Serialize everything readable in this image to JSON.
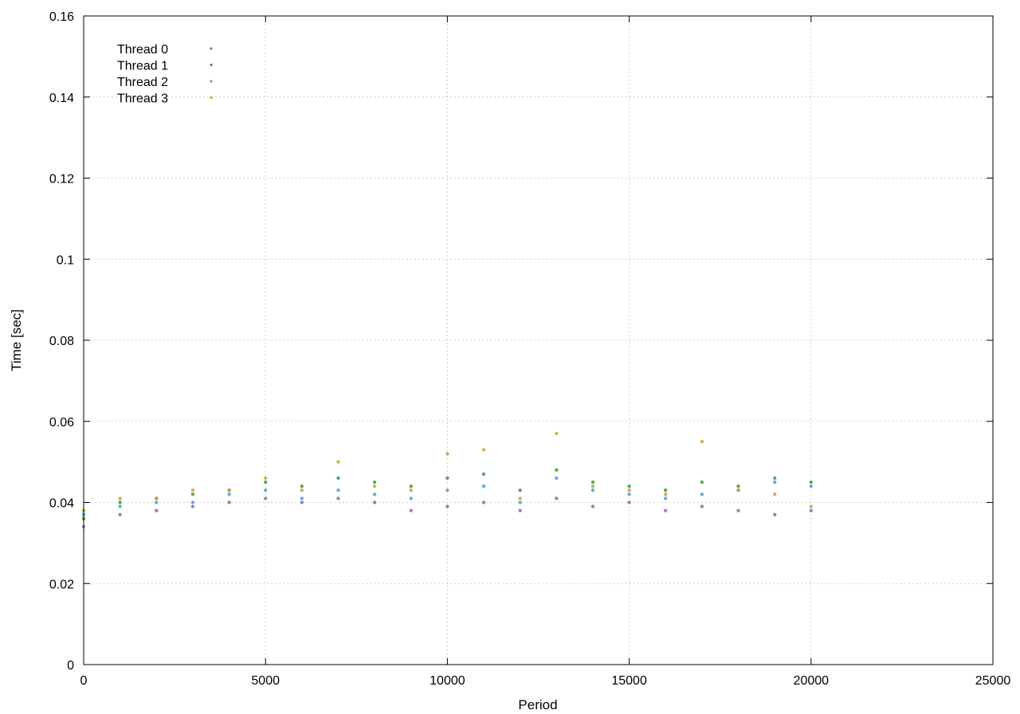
{
  "chart_data": {
    "type": "scatter",
    "title": "",
    "xlabel": "Period",
    "ylabel": "Time [sec]",
    "xlim": [
      0,
      25000
    ],
    "ylim": [
      0,
      0.16
    ],
    "xticks": [
      0,
      5000,
      10000,
      15000,
      20000,
      25000
    ],
    "yticks": [
      0,
      0.02,
      0.04,
      0.06,
      0.08,
      0.1,
      0.12,
      0.14,
      0.16
    ],
    "xtick_labels": [
      "0",
      "5000",
      "10000",
      "15000",
      "20000",
      "25000"
    ],
    "ytick_labels": [
      "0",
      "0.02",
      "0.04",
      "0.06",
      "0.08",
      "0.1",
      "0.12",
      "0.14",
      "0.16"
    ],
    "grid": true,
    "legend_position": "top-left",
    "series": [
      {
        "name": "Thread 0",
        "color": "#8a6bb0",
        "points": [
          [
            0,
            0.034
          ],
          [
            1000,
            0.037
          ],
          [
            2000,
            0.038
          ],
          [
            3000,
            0.039
          ],
          [
            4000,
            0.04
          ],
          [
            5000,
            0.041
          ],
          [
            6000,
            0.04
          ],
          [
            7000,
            0.041
          ],
          [
            8000,
            0.04
          ],
          [
            9000,
            0.038
          ],
          [
            10000,
            0.039
          ],
          [
            11000,
            0.04
          ],
          [
            12000,
            0.038
          ],
          [
            13000,
            0.041
          ],
          [
            14000,
            0.039
          ],
          [
            15000,
            0.04
          ],
          [
            16000,
            0.038
          ],
          [
            17000,
            0.039
          ],
          [
            18000,
            0.038
          ],
          [
            19000,
            0.037
          ],
          [
            20000,
            0.038
          ]
        ]
      },
      {
        "name": "Thread 1",
        "color": "#3e9a3e",
        "points": [
          [
            0,
            0.036
          ],
          [
            1000,
            0.04
          ],
          [
            2000,
            0.041
          ],
          [
            3000,
            0.042
          ],
          [
            4000,
            0.043
          ],
          [
            5000,
            0.045
          ],
          [
            6000,
            0.044
          ],
          [
            7000,
            0.046
          ],
          [
            8000,
            0.045
          ],
          [
            9000,
            0.044
          ],
          [
            10000,
            0.046
          ],
          [
            11000,
            0.047
          ],
          [
            12000,
            0.043
          ],
          [
            13000,
            0.048
          ],
          [
            14000,
            0.045
          ],
          [
            15000,
            0.044
          ],
          [
            16000,
            0.043
          ],
          [
            17000,
            0.045
          ],
          [
            18000,
            0.044
          ],
          [
            19000,
            0.046
          ],
          [
            20000,
            0.045
          ]
        ]
      },
      {
        "name": "Thread 2",
        "color": "#4f9fd8",
        "points": [
          [
            0,
            0.037
          ],
          [
            1000,
            0.039
          ],
          [
            2000,
            0.04
          ],
          [
            3000,
            0.04
          ],
          [
            4000,
            0.042
          ],
          [
            5000,
            0.043
          ],
          [
            6000,
            0.041
          ],
          [
            7000,
            0.043
          ],
          [
            8000,
            0.042
          ],
          [
            9000,
            0.041
          ],
          [
            10000,
            0.043
          ],
          [
            11000,
            0.044
          ],
          [
            12000,
            0.04
          ],
          [
            13000,
            0.046
          ],
          [
            14000,
            0.043
          ],
          [
            15000,
            0.042
          ],
          [
            16000,
            0.041
          ],
          [
            17000,
            0.042
          ],
          [
            18000,
            0.043
          ],
          [
            19000,
            0.045
          ],
          [
            20000,
            0.044
          ]
        ]
      },
      {
        "name": "Thread 3",
        "color": "#c9a33a",
        "points": [
          [
            0,
            0.038
          ],
          [
            1000,
            0.041
          ],
          [
            2000,
            0.041
          ],
          [
            3000,
            0.043
          ],
          [
            4000,
            0.043
          ],
          [
            5000,
            0.046
          ],
          [
            6000,
            0.043
          ],
          [
            7000,
            0.05
          ],
          [
            8000,
            0.044
          ],
          [
            9000,
            0.043
          ],
          [
            10000,
            0.052
          ],
          [
            11000,
            0.053
          ],
          [
            12000,
            0.041
          ],
          [
            13000,
            0.057
          ],
          [
            14000,
            0.044
          ],
          [
            15000,
            0.043
          ],
          [
            16000,
            0.042
          ],
          [
            17000,
            0.055
          ],
          [
            18000,
            0.043
          ],
          [
            19000,
            0.042
          ],
          [
            20000,
            0.039
          ]
        ]
      }
    ]
  }
}
